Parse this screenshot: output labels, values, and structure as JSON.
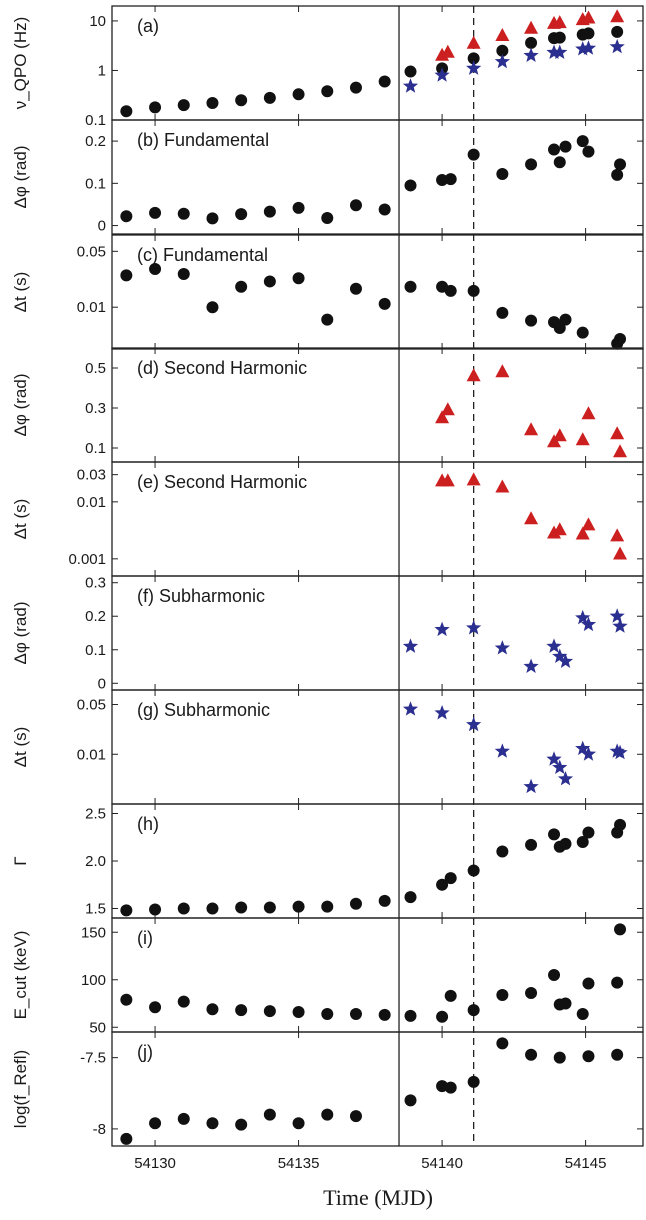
{
  "figure": {
    "xlabel": "Time (MJD)",
    "x_ticks": [
      54130,
      54135,
      54140,
      54145
    ],
    "xlim": [
      54128.5,
      54147.0
    ],
    "vline_solid": 54138.5,
    "vline_dashed": 54141.1,
    "colors": {
      "black": "#111111",
      "red": "#cc1f1f",
      "blue": "#2b2f8f",
      "axis": "#222222"
    }
  },
  "chart_data": [
    {
      "type": "scatter",
      "panel": "(a)",
      "title": "",
      "ylabel": "ν_QPO (Hz)",
      "yscale": "log",
      "ylim": [
        0.1,
        20
      ],
      "y_ticks": [
        0.1,
        1,
        10
      ],
      "y_tick_labels": [
        "0.1",
        "1",
        "10"
      ],
      "series": [
        {
          "marker": "circle",
          "color": "black",
          "x": [
            54129,
            54130,
            54131,
            54132,
            54133,
            54134,
            54135,
            54136,
            54137,
            54138,
            54138.9,
            54140,
            54141.1,
            54142.1,
            54143.1,
            54143.9,
            54144.1,
            54144.9,
            54145.1,
            54146.1
          ],
          "y": [
            0.15,
            0.18,
            0.2,
            0.22,
            0.25,
            0.28,
            0.33,
            0.38,
            0.45,
            0.6,
            0.95,
            1.1,
            1.75,
            2.5,
            3.6,
            4.5,
            4.6,
            5.3,
            5.6,
            6.0
          ]
        },
        {
          "marker": "triangle",
          "color": "red",
          "x": [
            54140,
            54140.2,
            54141.1,
            54142.1,
            54143.1,
            54143.9,
            54144.1,
            54144.9,
            54145.1,
            54146.1
          ],
          "y": [
            2.0,
            2.3,
            3.5,
            5.0,
            7.0,
            8.8,
            9.1,
            10.5,
            11.3,
            12.0
          ]
        },
        {
          "marker": "star",
          "color": "blue",
          "x": [
            54138.9,
            54140,
            54141.1,
            54142.1,
            54143.1,
            54143.9,
            54144.1,
            54144.9,
            54145.1,
            54146.1
          ],
          "y": [
            0.48,
            0.8,
            1.1,
            1.5,
            2.0,
            2.3,
            2.3,
            2.7,
            2.8,
            3.0
          ]
        }
      ]
    },
    {
      "type": "scatter",
      "panel": "(b)",
      "title": "Fundamental",
      "ylabel": "Δφ (rad)",
      "yscale": "linear",
      "ylim": [
        -0.02,
        0.25
      ],
      "y_ticks": [
        0,
        0.1,
        0.2
      ],
      "y_tick_labels": [
        "0",
        "0.1",
        "0.2"
      ],
      "series": [
        {
          "marker": "circle",
          "color": "black",
          "x": [
            54129,
            54130,
            54131,
            54132,
            54133,
            54134,
            54135,
            54136,
            54137,
            54138,
            54138.9,
            54140,
            54140.3,
            54141.1,
            54142.1,
            54143.1,
            54143.9,
            54144.1,
            54144.3,
            54144.9,
            54145.1,
            54146.1,
            54146.2
          ],
          "y": [
            0.022,
            0.03,
            0.028,
            0.017,
            0.027,
            0.033,
            0.042,
            0.018,
            0.048,
            0.038,
            0.095,
            0.108,
            0.11,
            0.168,
            0.122,
            0.145,
            0.18,
            0.15,
            0.187,
            0.2,
            0.175,
            0.12,
            0.145
          ]
        }
      ]
    },
    {
      "type": "scatter",
      "panel": "(c)",
      "title": "Fundamental",
      "ylabel": "Δt (s)",
      "yscale": "log",
      "ylim": [
        0.003,
        0.08
      ],
      "y_ticks": [
        0.01,
        0.05
      ],
      "y_tick_labels": [
        "0.01",
        "0.05"
      ],
      "series": [
        {
          "marker": "circle",
          "color": "black",
          "x": [
            54129,
            54130,
            54131,
            54132,
            54133,
            54134,
            54135,
            54136,
            54137,
            54138,
            54138.9,
            54140,
            54140.3,
            54141.1,
            54142.1,
            54143.1,
            54143.9,
            54144.1,
            54144.3,
            54144.9,
            54146.1,
            54146.2
          ],
          "y": [
            0.025,
            0.03,
            0.026,
            0.01,
            0.018,
            0.021,
            0.023,
            0.007,
            0.017,
            0.011,
            0.018,
            0.018,
            0.016,
            0.016,
            0.0085,
            0.0068,
            0.0065,
            0.0055,
            0.007,
            0.0048,
            0.0035,
            0.004
          ]
        }
      ]
    },
    {
      "type": "scatter",
      "panel": "(d)",
      "title": "Second Harmonic",
      "ylabel": "Δφ (rad)",
      "yscale": "linear",
      "ylim": [
        0.03,
        0.6
      ],
      "y_ticks": [
        0.1,
        0.3,
        0.5
      ],
      "y_tick_labels": [
        "0.1",
        "0.3",
        "0.5"
      ],
      "series": [
        {
          "marker": "triangle",
          "color": "red",
          "x": [
            54140,
            54140.2,
            54141.1,
            54142.1,
            54143.1,
            54143.9,
            54144.1,
            54144.9,
            54145.1,
            54146.1,
            54146.2
          ],
          "y": [
            0.25,
            0.29,
            0.46,
            0.48,
            0.19,
            0.13,
            0.16,
            0.14,
            0.27,
            0.17,
            0.08
          ]
        }
      ]
    },
    {
      "type": "scatter",
      "panel": "(e)",
      "title": "Second Harmonic",
      "ylabel": "Δt (s)",
      "yscale": "log",
      "ylim": [
        0.0005,
        0.05
      ],
      "y_ticks": [
        0.001,
        0.01,
        0.03
      ],
      "y_tick_labels": [
        "0.001",
        "0.01",
        "0.03"
      ],
      "series": [
        {
          "marker": "triangle",
          "color": "red",
          "x": [
            54140,
            54140.2,
            54141.1,
            54142.1,
            54143.1,
            54143.9,
            54144.1,
            54144.9,
            54145.1,
            54146.1,
            54146.2
          ],
          "y": [
            0.023,
            0.023,
            0.024,
            0.018,
            0.005,
            0.0028,
            0.0032,
            0.0027,
            0.0039,
            0.0025,
            0.0012
          ]
        }
      ]
    },
    {
      "type": "scatter",
      "panel": "(f)",
      "title": "Subharmonic",
      "ylabel": "Δφ (rad)",
      "yscale": "linear",
      "ylim": [
        -0.02,
        0.32
      ],
      "y_ticks": [
        0,
        0.1,
        0.2,
        0.3
      ],
      "y_tick_labels": [
        "0",
        "0.1",
        "0.2",
        "0.3"
      ],
      "series": [
        {
          "marker": "star",
          "color": "blue",
          "x": [
            54138.9,
            54140,
            54141.1,
            54142.1,
            54143.1,
            54143.9,
            54144.1,
            54144.3,
            54144.9,
            54145.1,
            54146.1,
            54146.2
          ],
          "y": [
            0.11,
            0.16,
            0.165,
            0.105,
            0.05,
            0.11,
            0.08,
            0.065,
            0.195,
            0.175,
            0.2,
            0.17
          ]
        }
      ]
    },
    {
      "type": "scatter",
      "panel": "(g)",
      "title": "Subharmonic",
      "ylabel": "Δt (s)",
      "yscale": "log",
      "ylim": [
        0.002,
        0.08
      ],
      "y_ticks": [
        0.01,
        0.05
      ],
      "y_tick_labels": [
        "0.01",
        "0.05"
      ],
      "series": [
        {
          "marker": "star",
          "color": "blue",
          "x": [
            54138.9,
            54140,
            54141.1,
            54142.1,
            54143.1,
            54143.9,
            54144.1,
            54144.3,
            54144.9,
            54145.1,
            54146.1,
            54146.2
          ],
          "y": [
            0.043,
            0.038,
            0.026,
            0.011,
            0.0035,
            0.0085,
            0.0065,
            0.0045,
            0.012,
            0.01,
            0.011,
            0.0105
          ]
        }
      ]
    },
    {
      "type": "scatter",
      "panel": "(h)",
      "title": "",
      "ylabel": "Γ",
      "yscale": "linear",
      "ylim": [
        1.4,
        2.6
      ],
      "y_ticks": [
        1.5,
        2.0,
        2.5
      ],
      "y_tick_labels": [
        "1.5",
        "2.0",
        "2.5"
      ],
      "series": [
        {
          "marker": "circle",
          "color": "black",
          "x": [
            54129,
            54130,
            54131,
            54132,
            54133,
            54134,
            54135,
            54136,
            54137,
            54138,
            54138.9,
            54140,
            54140.3,
            54141.1,
            54142.1,
            54143.1,
            54143.9,
            54144.1,
            54144.3,
            54144.9,
            54145.1,
            54146.1,
            54146.2
          ],
          "y": [
            1.48,
            1.49,
            1.5,
            1.5,
            1.51,
            1.51,
            1.52,
            1.52,
            1.55,
            1.58,
            1.62,
            1.75,
            1.82,
            1.9,
            2.1,
            2.17,
            2.28,
            2.15,
            2.18,
            2.2,
            2.3,
            2.3,
            2.38
          ]
        }
      ]
    },
    {
      "type": "scatter",
      "panel": "(i)",
      "title": "",
      "ylabel": "E_cut (keV)",
      "yscale": "linear",
      "ylim": [
        45,
        165
      ],
      "y_ticks": [
        50,
        100,
        150
      ],
      "y_tick_labels": [
        "50",
        "100",
        "150"
      ],
      "series": [
        {
          "marker": "circle",
          "color": "black",
          "x": [
            54129,
            54130,
            54131,
            54132,
            54133,
            54134,
            54135,
            54136,
            54137,
            54138,
            54138.9,
            54140,
            54140.3,
            54141.1,
            54142.1,
            54143.1,
            54143.9,
            54144.1,
            54144.3,
            54144.9,
            54145.1,
            54146.1,
            54146.2
          ],
          "y": [
            79,
            71,
            77,
            69,
            68,
            67,
            66,
            64,
            64,
            63,
            62,
            61,
            83,
            68,
            84,
            86,
            105,
            74,
            75,
            64,
            96,
            97,
            153
          ]
        }
      ]
    },
    {
      "type": "scatter",
      "panel": "(j)",
      "title": "",
      "ylabel": "log(f_Refl)",
      "yscale": "linear",
      "ylim": [
        -8.12,
        -7.32
      ],
      "y_ticks": [
        -8,
        -7.5
      ],
      "y_tick_labels": [
        "-8",
        "-7.5"
      ],
      "series": [
        {
          "marker": "circle",
          "color": "black",
          "x": [
            54129,
            54130,
            54131,
            54132,
            54133,
            54134,
            54135,
            54136,
            54137,
            54138.9,
            54140,
            54140.3,
            54141.1,
            54142.1,
            54143.1,
            54144.1,
            54145.1,
            54146.1
          ],
          "y": [
            -8.07,
            -7.96,
            -7.93,
            -7.96,
            -7.97,
            -7.9,
            -7.96,
            -7.9,
            -7.91,
            -7.8,
            -7.7,
            -7.71,
            -7.67,
            -7.4,
            -7.48,
            -7.5,
            -7.49,
            -7.48
          ]
        }
      ]
    }
  ]
}
